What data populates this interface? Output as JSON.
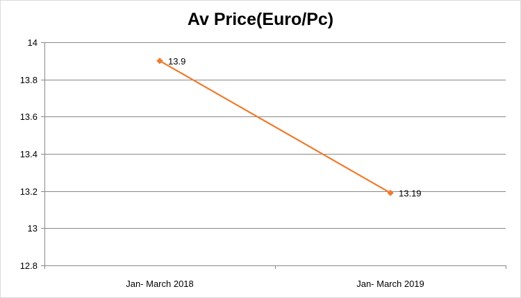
{
  "chart_data": {
    "type": "line",
    "title": "Av Price(Euro/Pc)",
    "categories": [
      "Jan- March 2018",
      "Jan- March 2019"
    ],
    "series": [
      {
        "values": [
          13.9,
          13.19
        ],
        "labels": [
          "13.9",
          "13.19"
        ],
        "color": "#ED7D31"
      }
    ],
    "ylim": [
      12.8,
      14
    ],
    "yticks": [
      12.8,
      13,
      13.2,
      13.4,
      13.6,
      13.8,
      14
    ],
    "ytick_labels": [
      "12.8",
      "13",
      "13.2",
      "13.4",
      "13.6",
      "13.8",
      "14"
    ],
    "grid": true,
    "legend": "none",
    "gridline_color": "#878787",
    "axis_color": "#868686"
  }
}
